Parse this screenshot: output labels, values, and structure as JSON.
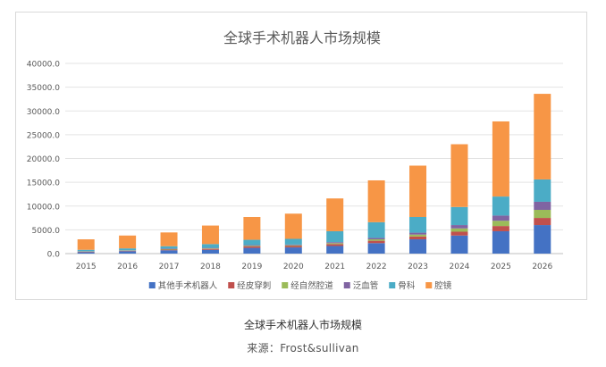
{
  "chart_data": {
    "type": "bar",
    "stacked": true,
    "title": "全球手术机器人市场规模",
    "categories": [
      "2015",
      "2016",
      "2017",
      "2018",
      "2019",
      "2020",
      "2021",
      "2022",
      "2023",
      "2024",
      "2025",
      "2026"
    ],
    "ylim": [
      0,
      40000
    ],
    "yticks": [
      "0.0",
      "5000.0",
      "10000.0",
      "15000.0",
      "20000.0",
      "25000.0",
      "30000.0",
      "35000.0",
      "40000.0"
    ],
    "grid": true,
    "legend_position": "bottom",
    "series": [
      {
        "name": "其他手术机器人",
        "color": "#4472c4",
        "values": [
          300,
          500,
          700,
          800,
          1200,
          1300,
          1600,
          2200,
          3000,
          3800,
          4700,
          6000
        ]
      },
      {
        "name": "经皮穿刺",
        "color": "#c0504d",
        "values": [
          100,
          100,
          150,
          200,
          300,
          300,
          400,
          500,
          600,
          800,
          1100,
          1500
        ]
      },
      {
        "name": "经自然腔道",
        "color": "#9bbb59",
        "values": [
          50,
          50,
          100,
          100,
          150,
          150,
          200,
          300,
          400,
          700,
          1100,
          1700
        ]
      },
      {
        "name": "泛血管",
        "color": "#8064a2",
        "values": [
          50,
          50,
          100,
          100,
          150,
          150,
          200,
          300,
          400,
          700,
          1100,
          1700
        ]
      },
      {
        "name": "骨科",
        "color": "#4bacc6",
        "values": [
          300,
          400,
          500,
          800,
          1100,
          1200,
          2300,
          3300,
          3300,
          3800,
          4000,
          4700
        ]
      },
      {
        "name": "腔镜",
        "color": "#f79646",
        "values": [
          2200,
          2700,
          2900,
          3900,
          4800,
          5300,
          6900,
          8800,
          10800,
          13200,
          15800,
          18000
        ]
      }
    ]
  },
  "caption": {
    "title": "全球手术机器人市场规模",
    "source": "来源：Frost&sullivan"
  }
}
